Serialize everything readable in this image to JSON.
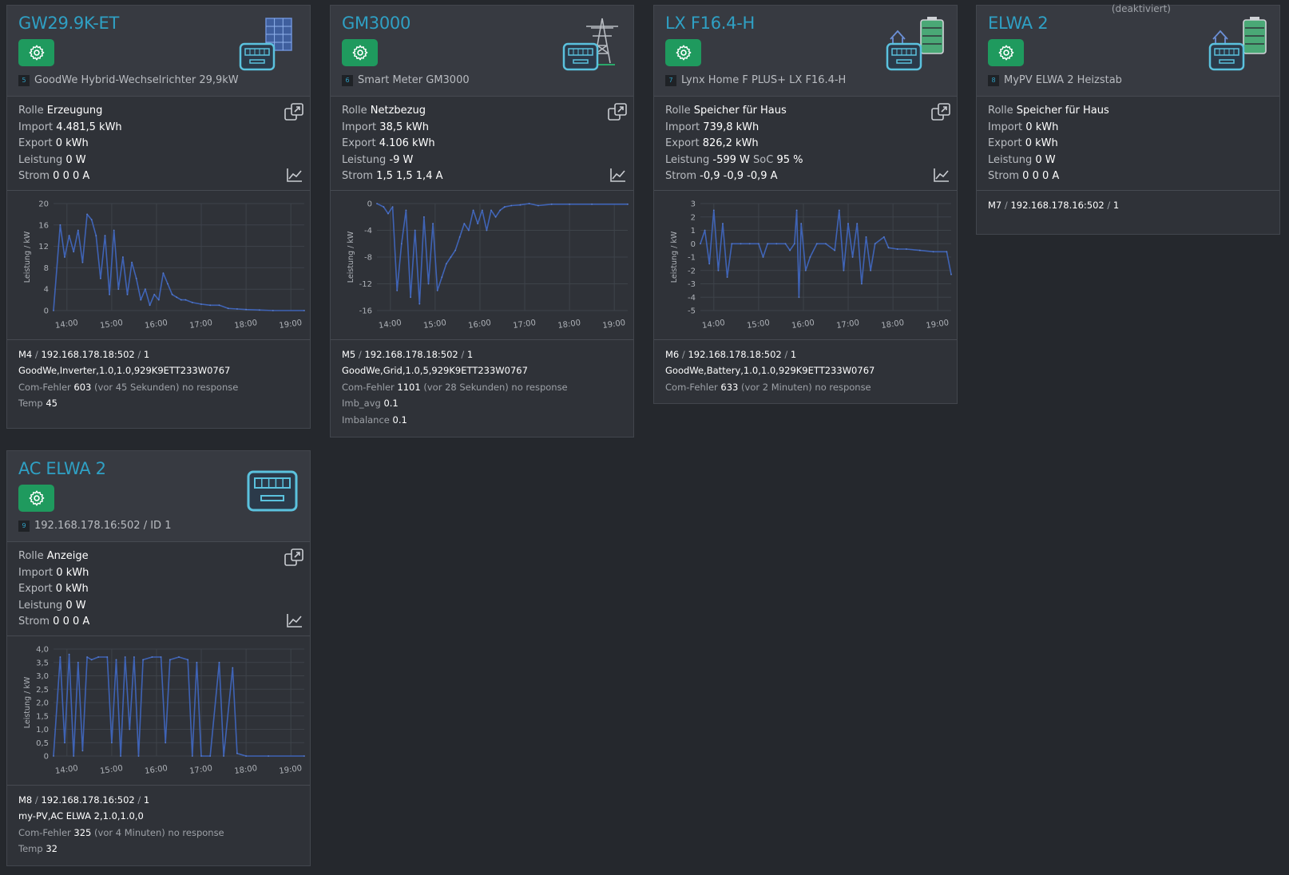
{
  "cards": [
    {
      "title": "GW29.9K-ET",
      "num": "5",
      "subtitle": "GoodWe Hybrid-Wechselrichter 29,9kW",
      "icon": "solar-panel-meter-icon",
      "info": {
        "rolle_label": "Rolle",
        "rolle": "Erzeugung",
        "import_label": "Import",
        "import": "4.481,5 kWh",
        "export_label": "Export",
        "export": "0 kWh",
        "leistung_label": "Leistung",
        "leistung": "0 W",
        "strom_label": "Strom",
        "strom": "0 0 0 A"
      },
      "footer": {
        "m": "M4",
        "addr": "192.168.178.18:502",
        "id": "1",
        "serial": "GoodWe,Inverter,1.0,1.0,929K9ETT233W0767",
        "comfehler_label": "Com-Fehler",
        "comfehler": "603",
        "comfehler_note": "(vor 45 Sekunden) no response",
        "extra1_label": "Temp",
        "extra1": "45"
      }
    },
    {
      "title": "GM3000",
      "num": "6",
      "subtitle": "Smart Meter GM3000",
      "icon": "power-tower-meter-icon",
      "info": {
        "rolle_label": "Rolle",
        "rolle": "Netzbezug",
        "import_label": "Import",
        "import": "38,5 kWh",
        "export_label": "Export",
        "export": "4.106 kWh",
        "leistung_label": "Leistung",
        "leistung": "-9 W",
        "strom_label": "Strom",
        "strom": "1,5 1,5 1,4 A"
      },
      "footer": {
        "m": "M5",
        "addr": "192.168.178.18:502",
        "id": "1",
        "serial": "GoodWe,Grid,1.0,5,929K9ETT233W0767",
        "comfehler_label": "Com-Fehler",
        "comfehler": "1101",
        "comfehler_note": "(vor 28 Sekunden) no response",
        "extra1_label": "Imb_avg",
        "extra1": "0.1",
        "extra2_label": "Imbalance",
        "extra2": "0.1"
      }
    },
    {
      "title": "LX F16.4-H",
      "num": "7",
      "subtitle": "Lynx Home F PLUS+ LX F16.4-H",
      "icon": "house-battery-meter-icon",
      "info": {
        "rolle_label": "Rolle",
        "rolle": "Speicher für Haus",
        "import_label": "Import",
        "import": "739,8 kWh",
        "export_label": "Export",
        "export": "826,2 kWh",
        "leistung_label": "Leistung",
        "leistung": "-599 W",
        "soc_label": "SoC",
        "soc": "95 %",
        "strom_label": "Strom",
        "strom": "-0,9 -0,9 -0,9 A"
      },
      "footer": {
        "m": "M6",
        "addr": "192.168.178.18:502",
        "id": "1",
        "serial": "GoodWe,Battery,1.0,1.0,929K9ETT233W0767",
        "comfehler_label": "Com-Fehler",
        "comfehler": "633",
        "comfehler_note": "(vor 2 Minuten) no response"
      }
    },
    {
      "title": "ELWA 2",
      "num": "8",
      "subtitle": "MyPV ELWA 2 Heizstab",
      "status": "(deaktiviert)",
      "icon": "house-battery-meter-icon",
      "info": {
        "rolle_label": "Rolle",
        "rolle": "Speicher für Haus",
        "import_label": "Import",
        "import": "0 kWh",
        "export_label": "Export",
        "export": "0 kWh",
        "leistung_label": "Leistung",
        "leistung": "0 W",
        "strom_label": "Strom",
        "strom": "0 0 0 A"
      },
      "footer": {
        "m": "M7",
        "addr": "192.168.178.16:502",
        "id": "1"
      }
    },
    {
      "title": "AC ELWA 2",
      "num": "9",
      "subtitle": "192.168.178.16:502 / ID 1",
      "icon": "meter-icon",
      "info": {
        "rolle_label": "Rolle",
        "rolle": "Anzeige",
        "import_label": "Import",
        "import": "0 kWh",
        "export_label": "Export",
        "export": "0 kWh",
        "leistung_label": "Leistung",
        "leistung": "0 W",
        "strom_label": "Strom",
        "strom": "0 0 0 A"
      },
      "footer": {
        "m": "M8",
        "addr": "192.168.178.16:502",
        "id": "1",
        "serial": "my-PV,AC ELWA 2,1.0,1.0,0",
        "comfehler_label": "Com-Fehler",
        "comfehler": "325",
        "comfehler_note": "(vor 4 Minuten) no response",
        "extra1_label": "Temp",
        "extra1": "32"
      }
    }
  ],
  "chart_data": [
    {
      "type": "line",
      "ylabel": "Leistung / kW",
      "x_ticks": [
        "14:00",
        "15:00",
        "16:00",
        "17:00",
        "18:00",
        "19:00"
      ],
      "y_ticks": [
        "20",
        "16",
        "12",
        "8",
        "4",
        "0"
      ],
      "ylim": [
        0,
        20
      ],
      "series": [
        {
          "values": [
            [
              13.7,
              0
            ],
            [
              13.85,
              16
            ],
            [
              13.95,
              10
            ],
            [
              14.05,
              14
            ],
            [
              14.15,
              11
            ],
            [
              14.25,
              15
            ],
            [
              14.35,
              9
            ],
            [
              14.45,
              18
            ],
            [
              14.55,
              17
            ],
            [
              14.65,
              14
            ],
            [
              14.75,
              6
            ],
            [
              14.85,
              14
            ],
            [
              14.95,
              3
            ],
            [
              15.05,
              15
            ],
            [
              15.15,
              4
            ],
            [
              15.25,
              10
            ],
            [
              15.35,
              3
            ],
            [
              15.45,
              9
            ],
            [
              15.55,
              6
            ],
            [
              15.65,
              2
            ],
            [
              15.75,
              4
            ],
            [
              15.85,
              1
            ],
            [
              15.95,
              3
            ],
            [
              16.05,
              2
            ],
            [
              16.15,
              7
            ],
            [
              16.25,
              5
            ],
            [
              16.35,
              3
            ],
            [
              16.45,
              2.5
            ],
            [
              16.55,
              2
            ],
            [
              16.65,
              2
            ],
            [
              16.8,
              1.5
            ],
            [
              17.0,
              1.2
            ],
            [
              17.2,
              1
            ],
            [
              17.4,
              1
            ],
            [
              17.6,
              0.4
            ],
            [
              17.8,
              0.3
            ],
            [
              18.0,
              0.2
            ],
            [
              18.3,
              0.1
            ],
            [
              18.6,
              0
            ],
            [
              19.3,
              0
            ]
          ]
        }
      ]
    },
    {
      "type": "line",
      "ylabel": "Leistung / kW",
      "x_ticks": [
        "14:00",
        "15:00",
        "16:00",
        "17:00",
        "18:00",
        "19:00"
      ],
      "y_ticks": [
        "0",
        "-4",
        "-8",
        "-12",
        "-16"
      ],
      "ylim": [
        -16,
        0
      ],
      "series": [
        {
          "values": [
            [
              13.7,
              0
            ],
            [
              13.85,
              -0.5
            ],
            [
              13.95,
              -1.5
            ],
            [
              14.05,
              -0.5
            ],
            [
              14.15,
              -13
            ],
            [
              14.25,
              -6
            ],
            [
              14.35,
              -1
            ],
            [
              14.45,
              -14
            ],
            [
              14.55,
              -4
            ],
            [
              14.65,
              -15
            ],
            [
              14.75,
              -2
            ],
            [
              14.85,
              -12
            ],
            [
              14.95,
              -3
            ],
            [
              15.05,
              -13
            ],
            [
              15.15,
              -11
            ],
            [
              15.25,
              -9
            ],
            [
              15.35,
              -8
            ],
            [
              15.45,
              -7
            ],
            [
              15.55,
              -5
            ],
            [
              15.65,
              -3
            ],
            [
              15.75,
              -4
            ],
            [
              15.85,
              -1
            ],
            [
              15.95,
              -3
            ],
            [
              16.05,
              -1
            ],
            [
              16.15,
              -4
            ],
            [
              16.25,
              -1
            ],
            [
              16.35,
              -2
            ],
            [
              16.45,
              -1
            ],
            [
              16.55,
              -0.5
            ],
            [
              16.7,
              -0.3
            ],
            [
              16.9,
              -0.2
            ],
            [
              17.1,
              0
            ],
            [
              17.3,
              -0.3
            ],
            [
              17.6,
              -0.1
            ],
            [
              18.0,
              -0.1
            ],
            [
              18.5,
              -0.1
            ],
            [
              19.3,
              -0.1
            ]
          ]
        }
      ]
    },
    {
      "type": "line",
      "ylabel": "Leistung / kW",
      "x_ticks": [
        "14:00",
        "15:00",
        "16:00",
        "17:00",
        "18:00",
        "19:00"
      ],
      "y_ticks": [
        "3",
        "2",
        "1",
        "0",
        "-1",
        "-2",
        "-3",
        "-4",
        "-5"
      ],
      "ylim": [
        -5,
        3
      ],
      "series": [
        {
          "values": [
            [
              13.7,
              0
            ],
            [
              13.8,
              1
            ],
            [
              13.9,
              -1.5
            ],
            [
              14.0,
              2.5
            ],
            [
              14.1,
              -2
            ],
            [
              14.2,
              1.5
            ],
            [
              14.3,
              -2.5
            ],
            [
              14.4,
              0
            ],
            [
              14.6,
              0
            ],
            [
              14.8,
              0
            ],
            [
              15.0,
              0
            ],
            [
              15.1,
              -1
            ],
            [
              15.2,
              0
            ],
            [
              15.4,
              0
            ],
            [
              15.6,
              0
            ],
            [
              15.7,
              -0.5
            ],
            [
              15.8,
              0
            ],
            [
              15.85,
              2.5
            ],
            [
              15.9,
              -4
            ],
            [
              15.95,
              1.5
            ],
            [
              16.05,
              -2
            ],
            [
              16.15,
              -1
            ],
            [
              16.3,
              0
            ],
            [
              16.5,
              0
            ],
            [
              16.7,
              -0.5
            ],
            [
              16.8,
              2.5
            ],
            [
              16.9,
              -2
            ],
            [
              17.0,
              1.5
            ],
            [
              17.1,
              -1
            ],
            [
              17.2,
              1.5
            ],
            [
              17.3,
              -3
            ],
            [
              17.4,
              0.5
            ],
            [
              17.5,
              -2
            ],
            [
              17.6,
              0
            ],
            [
              17.8,
              0.5
            ],
            [
              17.9,
              -0.3
            ],
            [
              18.1,
              -0.4
            ],
            [
              18.3,
              -0.4
            ],
            [
              18.6,
              -0.5
            ],
            [
              18.9,
              -0.6
            ],
            [
              19.2,
              -0.6
            ],
            [
              19.3,
              -2.3
            ]
          ]
        }
      ]
    },
    {
      "type": "line",
      "ylabel": "Leistung / kW",
      "x_ticks": [
        "14:00",
        "15:00",
        "16:00",
        "17:00",
        "18:00",
        "19:00"
      ],
      "y_ticks": [
        "4,0",
        "3,5",
        "3,0",
        "2,5",
        "2,0",
        "1,5",
        "1,0",
        "0,5",
        "0"
      ],
      "ylim": [
        0,
        4
      ],
      "series": [
        {
          "values": [
            [
              13.7,
              0
            ],
            [
              13.85,
              3.7
            ],
            [
              13.95,
              0.5
            ],
            [
              14.05,
              3.8
            ],
            [
              14.15,
              0
            ],
            [
              14.25,
              3.5
            ],
            [
              14.35,
              0.2
            ],
            [
              14.45,
              3.7
            ],
            [
              14.55,
              3.6
            ],
            [
              14.7,
              3.7
            ],
            [
              14.9,
              3.7
            ],
            [
              15.0,
              0.5
            ],
            [
              15.1,
              3.6
            ],
            [
              15.2,
              0
            ],
            [
              15.3,
              3.7
            ],
            [
              15.4,
              1
            ],
            [
              15.5,
              3.7
            ],
            [
              15.6,
              0
            ],
            [
              15.7,
              3.6
            ],
            [
              15.9,
              3.7
            ],
            [
              16.1,
              3.7
            ],
            [
              16.2,
              0.5
            ],
            [
              16.3,
              3.6
            ],
            [
              16.5,
              3.7
            ],
            [
              16.7,
              3.6
            ],
            [
              16.8,
              0
            ],
            [
              16.9,
              3.5
            ],
            [
              17.0,
              0
            ],
            [
              17.2,
              0
            ],
            [
              17.4,
              3.5
            ],
            [
              17.5,
              0
            ],
            [
              17.7,
              3.3
            ],
            [
              17.8,
              0.1
            ],
            [
              18.0,
              0
            ],
            [
              18.5,
              0
            ],
            [
              19.3,
              0
            ]
          ]
        }
      ]
    }
  ]
}
